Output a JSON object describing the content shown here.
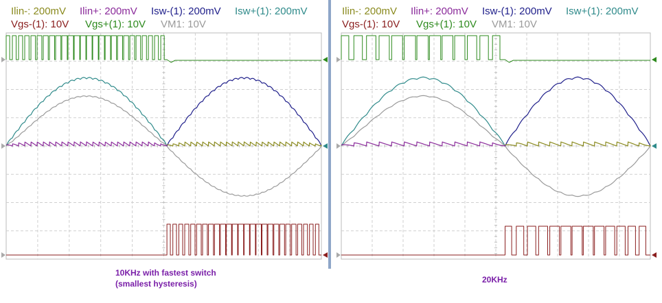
{
  "chart_data": [
    {
      "type": "line",
      "legend": [
        {
          "label": "Ilin-: 200mV",
          "color": "#8a8a1e"
        },
        {
          "label": "Ilin+: 200mV",
          "color": "#8a2a9a"
        },
        {
          "label": "Isw-(1): 200mV",
          "color": "#1e1e8a"
        },
        {
          "label": "Isw+(1): 200mV",
          "color": "#2e8a8a"
        },
        {
          "label": "Vgs-(1): 10V",
          "color": "#8a1e1e"
        },
        {
          "label": "Vgs+(1): 10V",
          "color": "#2e8a1e"
        },
        {
          "label": "VM1: 10V",
          "color": "#9a9a9a"
        }
      ],
      "caption": [
        "10KHz  with fastest switch",
        "(smallest hysteresis)"
      ],
      "switch_frequency_khz": 10,
      "grid": true
    },
    {
      "type": "line",
      "legend": [
        {
          "label": "Ilin-: 200mV",
          "color": "#8a8a1e"
        },
        {
          "label": "Ilin+: 200mV",
          "color": "#8a2a9a"
        },
        {
          "label": "Isw-(1): 200mV",
          "color": "#1e1e8a"
        },
        {
          "label": "Isw+(1): 200mV",
          "color": "#2e8a8a"
        },
        {
          "label": "Vgs-(1): 10V",
          "color": "#8a1e1e"
        },
        {
          "label": "Vgs+(1): 10V",
          "color": "#2e8a1e"
        },
        {
          "label": "VM1: 10V",
          "color": "#9a9a9a"
        }
      ],
      "caption": [
        "20KHz"
      ],
      "switch_frequency_khz": 20,
      "grid": true
    }
  ]
}
